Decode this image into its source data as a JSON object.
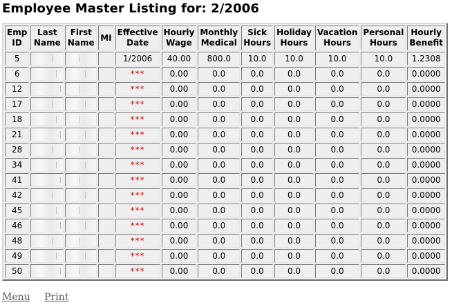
{
  "page": {
    "title": "Employee Master Listing for: 2/2006"
  },
  "table": {
    "headers": [
      "Emp ID",
      "Last Name",
      "First Name",
      "MI",
      "Effective Date",
      "Hourly Wage",
      "Monthly Medical",
      "Sick Hours",
      "Holiday Hours",
      "Vacation Hours",
      "Personal Hours",
      "Hourly Benefit"
    ],
    "rows": [
      [
        "5",
        "",
        "",
        "",
        "1/2006",
        "40.00",
        "800.0",
        "10.0",
        "10.0",
        "10.0",
        "10.0",
        "1.2308"
      ],
      [
        "6",
        "",
        "",
        "",
        "***",
        "0.00",
        "0.0",
        "0.0",
        "0.0",
        "0.0",
        "0.0",
        "0.0000"
      ],
      [
        "12",
        "",
        "",
        "",
        "***",
        "0.00",
        "0.0",
        "0.0",
        "0.0",
        "0.0",
        "0.0",
        "0.0000"
      ],
      [
        "17",
        "",
        "",
        "",
        "***",
        "0.00",
        "0.0",
        "0.0",
        "0.0",
        "0.0",
        "0.0",
        "0.0000"
      ],
      [
        "18",
        "",
        "",
        "",
        "***",
        "0.00",
        "0.0",
        "0.0",
        "0.0",
        "0.0",
        "0.0",
        "0.0000"
      ],
      [
        "21",
        "",
        "",
        "",
        "***",
        "0.00",
        "0.0",
        "0.0",
        "0.0",
        "0.0",
        "0.0",
        "0.0000"
      ],
      [
        "28",
        "",
        "",
        "",
        "***",
        "0.00",
        "0.0",
        "0.0",
        "0.0",
        "0.0",
        "0.0",
        "0.0000"
      ],
      [
        "34",
        "",
        "",
        "",
        "***",
        "0.00",
        "0.0",
        "0.0",
        "0.0",
        "0.0",
        "0.0",
        "0.0000"
      ],
      [
        "41",
        "",
        "",
        "",
        "***",
        "0.00",
        "0.0",
        "0.0",
        "0.0",
        "0.0",
        "0.0",
        "0.0000"
      ],
      [
        "42",
        "",
        "",
        "",
        "***",
        "0.00",
        "0.0",
        "0.0",
        "0.0",
        "0.0",
        "0.0",
        "0.0000"
      ],
      [
        "45",
        "",
        "",
        "",
        "***",
        "0.00",
        "0.0",
        "0.0",
        "0.0",
        "0.0",
        "0.0",
        "0.0000"
      ],
      [
        "46",
        "",
        "",
        "",
        "***",
        "0.00",
        "0.0",
        "0.0",
        "0.0",
        "0.0",
        "0.0",
        "0.0000"
      ],
      [
        "48",
        "",
        "",
        "",
        "***",
        "0.00",
        "0.0",
        "0.0",
        "0.0",
        "0.0",
        "0.0",
        "0.0000"
      ],
      [
        "49",
        "",
        "",
        "",
        "***",
        "0.00",
        "0.0",
        "0.0",
        "0.0",
        "0.0",
        "0.0",
        "0.0000"
      ],
      [
        "50",
        "",
        "",
        "",
        "***",
        "0.00",
        "0.0",
        "0.0",
        "0.0",
        "0.0",
        "0.0",
        "0.0000"
      ]
    ]
  },
  "links": {
    "menu": "Menu",
    "print": "Print"
  },
  "colors": {
    "missing_date": "#d40000",
    "cell_bg": "#efefef",
    "link": "#555555"
  }
}
